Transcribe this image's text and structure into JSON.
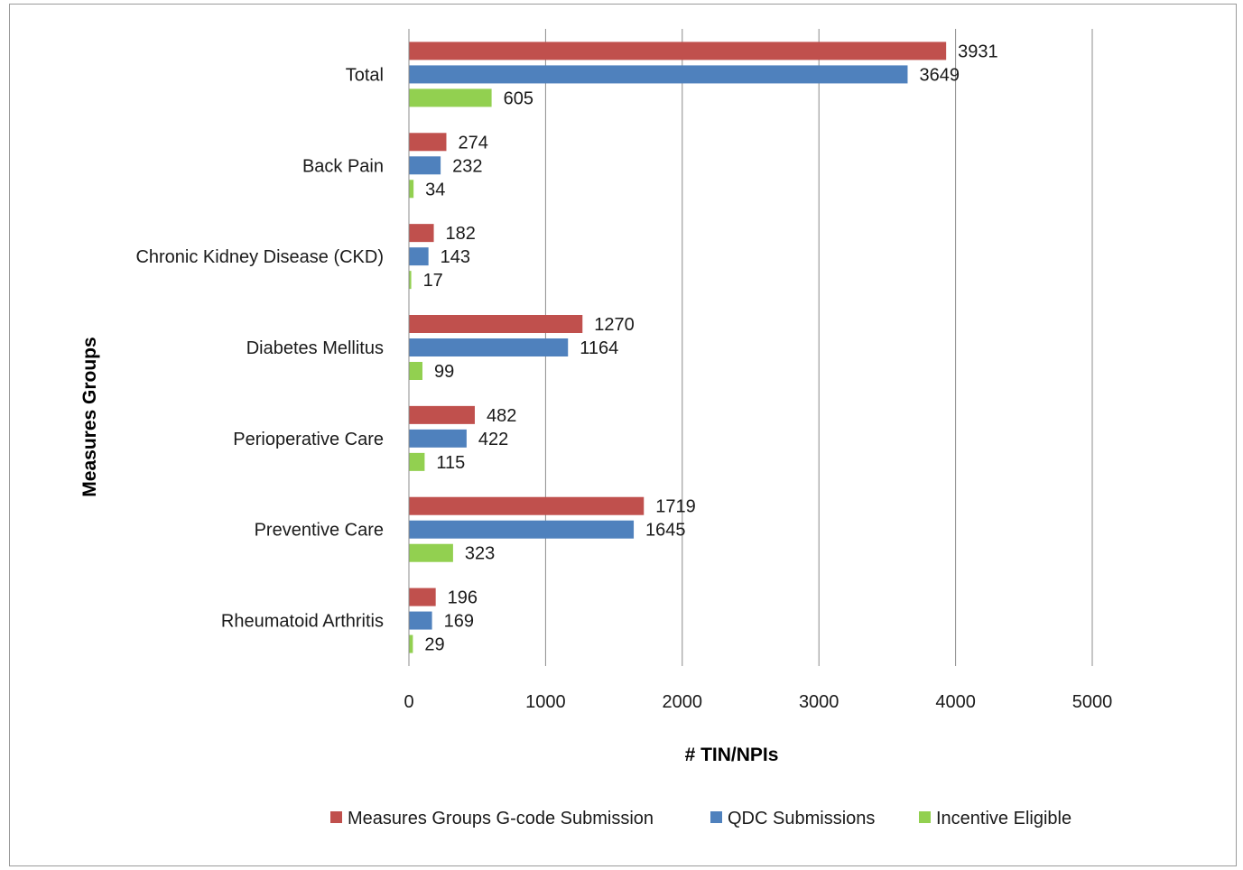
{
  "chart_data": {
    "type": "bar",
    "orientation": "horizontal",
    "categories": [
      "Total",
      "Back Pain",
      "Chronic Kidney Disease (CKD)",
      "Diabetes Mellitus",
      "Perioperative Care",
      "Preventive Care",
      "Rheumatoid Arthritis"
    ],
    "series": [
      {
        "name": "Measures Groups G-code Submission",
        "color": "#c0504d",
        "values": [
          3931,
          274,
          182,
          1270,
          482,
          1719,
          196
        ]
      },
      {
        "name": "QDC Submissions",
        "color": "#4f81bd",
        "values": [
          3649,
          232,
          143,
          1164,
          422,
          1645,
          169
        ]
      },
      {
        "name": "Incentive Eligible",
        "color": "#92d050",
        "values": [
          605,
          34,
          17,
          99,
          115,
          323,
          29
        ]
      }
    ],
    "xlabel": "# TIN/NPIs",
    "ylabel": "Measures Groups",
    "xlim": [
      0,
      5000
    ],
    "xticks": [
      "0",
      "1000",
      "2000",
      "3000",
      "4000",
      "5000"
    ],
    "grid": "vertical",
    "legend_position": "bottom"
  }
}
